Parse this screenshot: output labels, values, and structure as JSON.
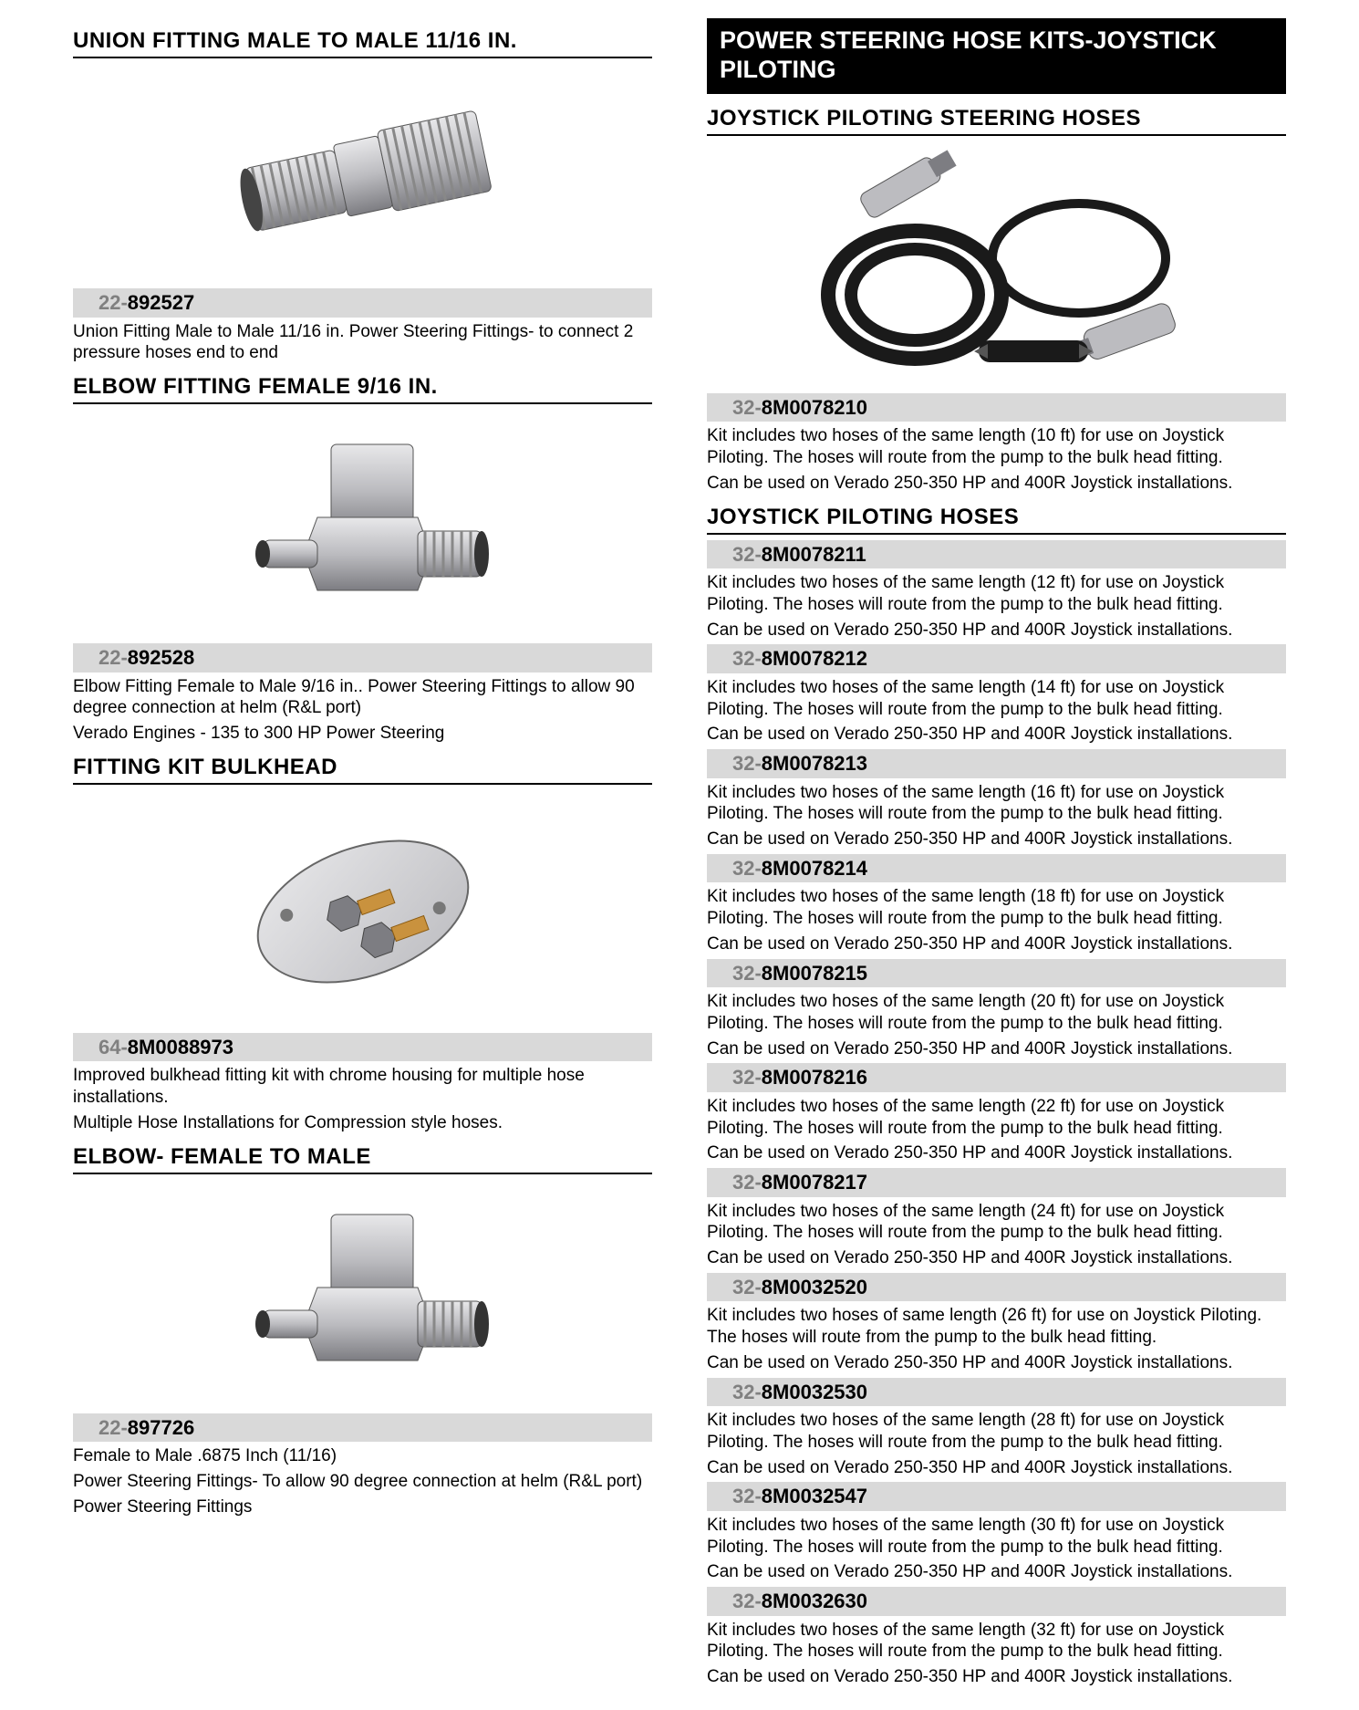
{
  "left": {
    "items": [
      {
        "title": "UNION FITTING MALE TO MALE 11/16 IN.",
        "image": "union",
        "part_prefix": "22-",
        "part_suffix": "892527",
        "desc": [
          "Union Fitting Male to Male 11/16 in.  Power Steering Fittings- to connect 2 pressure hoses end to end"
        ]
      },
      {
        "title": "ELBOW FITTING FEMALE 9/16 IN.",
        "image": "elbow",
        "part_prefix": "22-",
        "part_suffix": "892528",
        "desc": [
          "Elbow Fitting Female to Male 9/16 in..  Power Steering Fittings to allow 90 degree connection at helm (R&L port)",
          "Verado Engines - 135 to 300 HP Power Steering"
        ]
      },
      {
        "title": "FITTING KIT BULKHEAD",
        "image": "bulkhead",
        "part_prefix": "64-",
        "part_suffix": "8M0088973",
        "desc": [
          "Improved bulkhead fitting kit with chrome housing for multiple hose installations.",
          "Multiple Hose Installations for Compression style hoses."
        ]
      },
      {
        "title": "ELBOW- FEMALE TO MALE",
        "image": "elbow",
        "part_prefix": "22-",
        "part_suffix": "897726",
        "desc": [
          "Female to Male  .6875 Inch (11/16)",
          "Power Steering Fittings- To allow 90 degree connection at helm (R&L port)",
          "Power Steering Fittings"
        ]
      }
    ]
  },
  "right": {
    "banner": "POWER STEERING HOSE KITS-JOYSTICK PILOTING",
    "section1": {
      "title": "JOYSTICK PILOTING STEERING HOSES",
      "image": "hosekit",
      "part_prefix": "32-",
      "part_suffix": "8M0078210",
      "desc": [
        "Kit includes two hoses of the same length (10 ft) for use on Joystick Piloting. The hoses will route from the pump to the bulk head fitting.",
        "Can be used on Verado 250-350 HP and 400R Joystick installations."
      ]
    },
    "section2": {
      "title": "JOYSTICK PILOTING HOSES",
      "items": [
        {
          "part_prefix": "32-",
          "part_suffix": "8M0078211",
          "desc": [
            "Kit includes two hoses of the same length (12 ft) for use on Joystick Piloting. The hoses will route from the pump to the bulk head fitting.",
            "Can be used on Verado 250-350 HP and 400R Joystick installations."
          ]
        },
        {
          "part_prefix": "32-",
          "part_suffix": "8M0078212",
          "desc": [
            "Kit includes two hoses of the same length (14 ft) for use on Joystick Piloting. The hoses will route from the pump to the bulk head fitting.",
            "Can be used on Verado 250-350 HP and 400R Joystick installations."
          ]
        },
        {
          "part_prefix": "32-",
          "part_suffix": "8M0078213",
          "desc": [
            "Kit includes two hoses of the same length (16 ft) for use on Joystick Piloting. The hoses will route from the pump to the bulk head fitting.",
            "Can be used on Verado 250-350 HP and 400R Joystick installations."
          ]
        },
        {
          "part_prefix": "32-",
          "part_suffix": "8M0078214",
          "desc": [
            "Kit includes two hoses of the same length (18 ft) for use on Joystick Piloting. The hoses will route from the pump to the bulk head fitting.",
            "Can be used on Verado 250-350 HP and 400R Joystick installations."
          ]
        },
        {
          "part_prefix": "32-",
          "part_suffix": "8M0078215",
          "desc": [
            "Kit includes two hoses of the same length (20 ft) for use on Joystick Piloting. The hoses will route from the pump to the bulk head fitting.",
            "Can be used on Verado 250-350 HP and 400R Joystick installations."
          ]
        },
        {
          "part_prefix": "32-",
          "part_suffix": "8M0078216",
          "desc": [
            "Kit includes two hoses of the same length (22 ft) for use on Joystick Piloting. The hoses will route from the pump to the bulk head fitting.",
            "Can be used on Verado 250-350 HP and 400R Joystick installations."
          ]
        },
        {
          "part_prefix": "32-",
          "part_suffix": "8M0078217",
          "desc": [
            "Kit includes two hoses of the same length (24 ft) for use on Joystick Piloting. The hoses will route from the pump to the bulk head fitting.",
            "Can be used on Verado 250-350 HP and 400R Joystick installations."
          ]
        },
        {
          "part_prefix": "32-",
          "part_suffix": "8M0032520",
          "desc": [
            "Kit includes two  hoses of same length (26 ft) for use on Joystick Piloting. The hoses will route from the pump to the bulk head fitting.",
            "Can be used on Verado 250-350 HP and 400R Joystick installations."
          ]
        },
        {
          "part_prefix": "32-",
          "part_suffix": "8M0032530",
          "desc": [
            "Kit includes two hoses of the same length (28 ft) for use on Joystick Piloting. The hoses will route from the pump to the bulk head fitting.",
            "Can be used on Verado 250-350 HP and 400R Joystick installations."
          ]
        },
        {
          "part_prefix": "32-",
          "part_suffix": "8M0032547",
          "desc": [
            "Kit includes two hoses of the same length (30 ft) for use on Joystick Piloting. The hoses will route from the pump to the bulk head fitting.",
            "Can be used on Verado 250-350 HP and 400R Joystick installations."
          ]
        },
        {
          "part_prefix": "32-",
          "part_suffix": "8M0032630",
          "desc": [
            "Kit includes two hoses of the same length (32 ft) for use on Joystick Piloting. The hoses will route from the pump to the bulk head fitting.",
            "Can be used on Verado 250-350 HP and 400R Joystick installations."
          ]
        }
      ]
    }
  },
  "svg": {
    "metal_light": "#e8e8ea",
    "metal_mid": "#bcbcc0",
    "metal_dark": "#7d7d82",
    "brass": "#c9923e",
    "black": "#1a1a1a"
  }
}
